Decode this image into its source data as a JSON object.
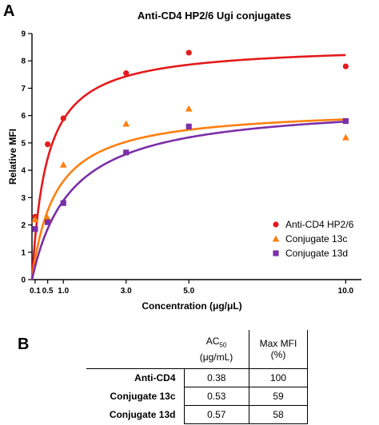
{
  "chart_data": {
    "type": "scatter",
    "panel_label": "A",
    "title": "Anti-CD4 HP2/6 Ugi conjugates",
    "xlabel": "Concentration (μg/μL)",
    "ylabel": "Relative MFI",
    "xlim": [
      0,
      10.5
    ],
    "ylim": [
      0,
      9
    ],
    "x_ticks": [
      0.1,
      0.5,
      1.0,
      3.0,
      5.0,
      10.0
    ],
    "x_tick_labels": [
      "0.1",
      "0.5",
      "1.0",
      "3.0",
      "5.0",
      "10.0"
    ],
    "y_ticks": [
      0,
      1,
      2,
      3,
      4,
      5,
      6,
      7,
      8,
      9
    ],
    "legend_position": "bottom-right",
    "grid": false,
    "series": [
      {
        "name": "Anti-CD4 HP2/6",
        "marker": "circle",
        "color": "#e41a1c",
        "x": [
          0.1,
          0.5,
          1.0,
          3.0,
          5.0,
          10.0
        ],
        "y": [
          2.3,
          4.95,
          5.9,
          7.55,
          8.3,
          7.8
        ],
        "fit": {
          "model": "one-site binding",
          "bmax": 8.6,
          "kd": 0.47
        }
      },
      {
        "name": "Conjugate 13c",
        "marker": "triangle",
        "color": "#ff7f0e",
        "x": [
          0.1,
          0.5,
          1.0,
          3.0,
          5.0,
          10.0
        ],
        "y": [
          2.2,
          2.25,
          4.2,
          5.7,
          6.25,
          5.2
        ],
        "fit": {
          "model": "one-site binding",
          "bmax": 6.3,
          "kd": 0.75
        }
      },
      {
        "name": "Conjugate 13d",
        "marker": "square",
        "color": "#7b2fa8",
        "x": [
          0.1,
          0.5,
          1.0,
          3.0,
          5.0,
          10.0
        ],
        "y": [
          1.85,
          2.1,
          2.8,
          4.65,
          5.6,
          5.8
        ],
        "fit": {
          "model": "one-site binding",
          "bmax": 6.5,
          "kd": 1.25
        }
      }
    ]
  },
  "table": {
    "panel_label": "B",
    "header": {
      "ac50_main": "AC",
      "ac50_sub": "50",
      "ac50_units": "(μg/mL)",
      "max_mfi": "Max MFI",
      "max_mfi_units": "(%)"
    },
    "rows": [
      {
        "name": "Anti-CD4",
        "ac50": "0.38",
        "max_mfi": "100"
      },
      {
        "name": "Conjugate 13c",
        "ac50": "0.53",
        "max_mfi": "59"
      },
      {
        "name": "Conjugate 13d",
        "ac50": "0.57",
        "max_mfi": "58"
      }
    ]
  }
}
